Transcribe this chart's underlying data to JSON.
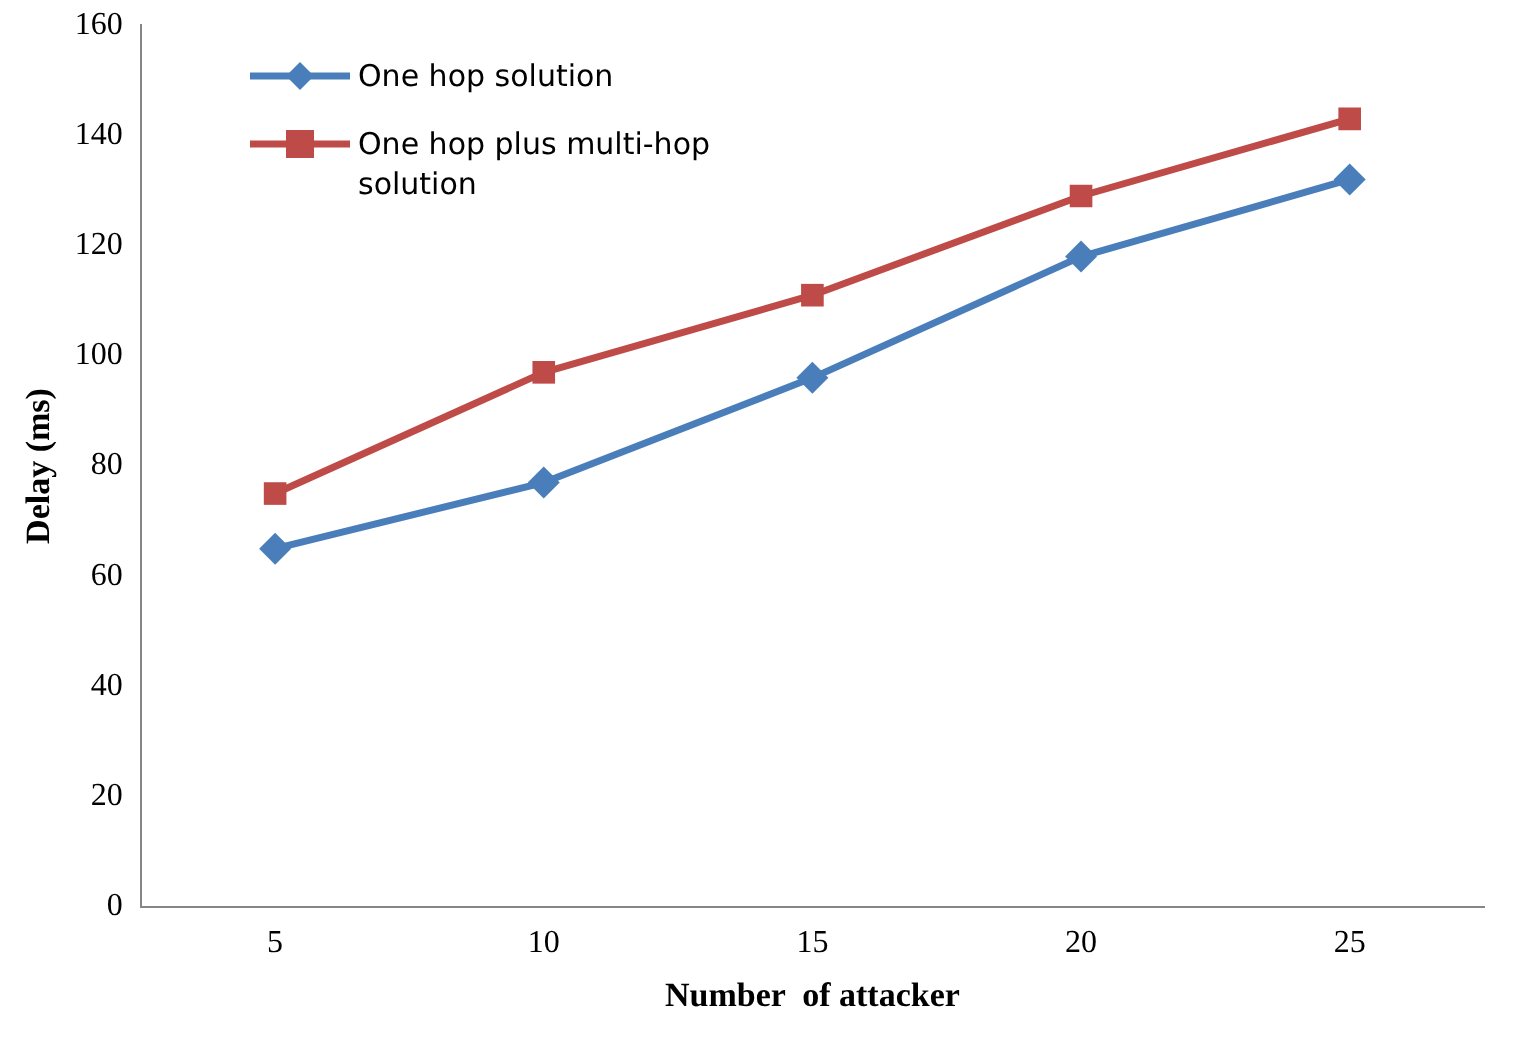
{
  "chart_data": {
    "type": "line",
    "xlabel": "Number  of attacker",
    "ylabel": "Delay (ms)",
    "categories": [
      "5",
      "10",
      "15",
      "20",
      "25"
    ],
    "series": [
      {
        "name": "One hop solution",
        "color": "#4a7ebb",
        "marker": "diamond",
        "values": [
          65,
          77,
          96,
          118,
          132
        ]
      },
      {
        "name": "One hop plus multi-hop solution",
        "color": "#be4b48",
        "marker": "square",
        "values": [
          75,
          97,
          111,
          129,
          143
        ]
      }
    ],
    "ylim": [
      0,
      160
    ],
    "yticks": [
      0,
      20,
      40,
      60,
      80,
      100,
      120,
      140,
      160
    ],
    "grid": false,
    "legend": "top left",
    "line_style": "solid"
  }
}
